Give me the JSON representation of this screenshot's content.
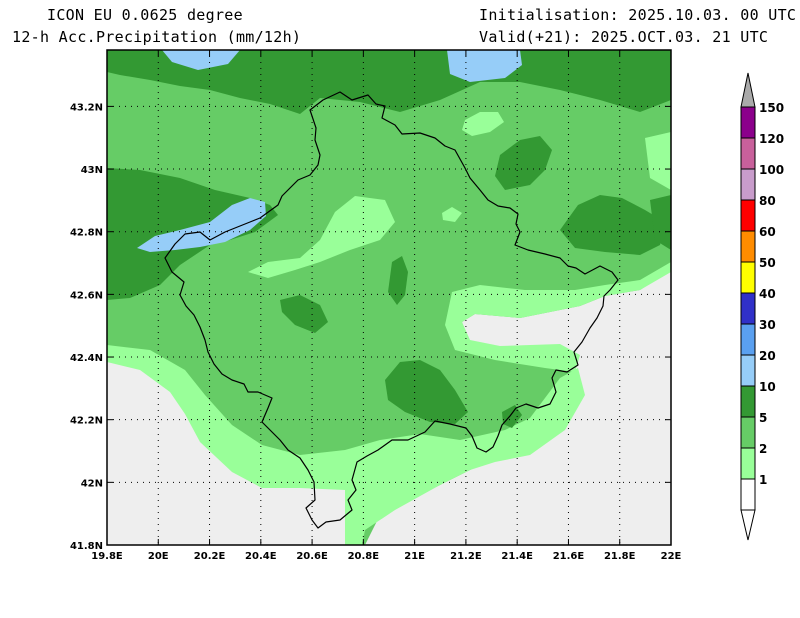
{
  "header": {
    "model": "ICON EU 0.0625 degree",
    "field": "12-h Acc.Precipitation (mm/12h)",
    "init": "Initialisation: 2025.10.03. 00 UTC",
    "valid": "Valid(+21): 2025.OCT.03. 21 UTC"
  },
  "axes": {
    "lat_labels": [
      "43.2N",
      "43N",
      "42.8N",
      "42.6N",
      "42.4N",
      "42.2N",
      "42N",
      "41.8N"
    ],
    "lat_values": [
      43.2,
      43.0,
      42.8,
      42.6,
      42.4,
      42.2,
      42.0,
      41.8
    ],
    "lon_labels": [
      "19.8E",
      "20E",
      "20.2E",
      "20.4E",
      "20.6E",
      "20.8E",
      "21E",
      "21.2E",
      "21.4E",
      "21.6E",
      "21.8E",
      "22E"
    ],
    "lon_values": [
      19.8,
      20.0,
      20.2,
      20.4,
      20.6,
      20.8,
      21.0,
      21.2,
      21.4,
      21.6,
      21.8,
      22.0
    ],
    "lat_range": [
      41.8,
      43.38
    ],
    "lon_range": [
      19.8,
      22.0
    ],
    "grid": "dotted"
  },
  "colorbar": {
    "levels": [
      "150",
      "120",
      "100",
      "80",
      "60",
      "50",
      "40",
      "30",
      "20",
      "10",
      "5",
      "2",
      "1"
    ],
    "colors": [
      "#8b008b",
      "#c8609b",
      "#c89ccb",
      "#ff0000",
      "#ff8c00",
      "#ffff00",
      "#3030c8",
      "#5aa0f0",
      "#96cdf8",
      "#339933",
      "#66cc66",
      "#99ff99",
      "#ffffff"
    ],
    "top_arrow_color": "#aaaaaa",
    "bottom_arrow_color": "#ffffff"
  },
  "map_colors": {
    "no_data": "#eeeeee",
    "c_1_2": "#99ff99",
    "c_2_5": "#66cc66",
    "c_5_10": "#339933",
    "c_10_20": "#96cdf8",
    "border": "#000000"
  }
}
